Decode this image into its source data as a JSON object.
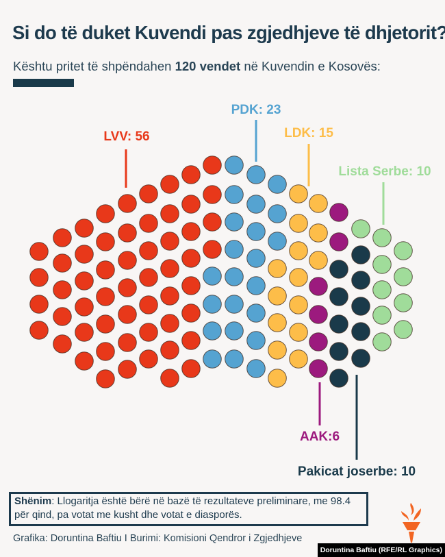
{
  "header": {
    "title": "Si do të duket Kuvendi pas zgjedhjeve të dhjetorit?",
    "subtitle_before": "Kështu pritet të shpëndahen ",
    "subtitle_bold": "120 vendet",
    "subtitle_after": " në Kuvendin e Kosovës:"
  },
  "chart_data": {
    "type": "parliament-dot",
    "title": "Si do të duket Kuvendi pas zgjedhjeve të dhjetorit?",
    "total_seats": 120,
    "series": [
      {
        "name": "LVV",
        "label": "LVV: 56",
        "seats": 56,
        "color": "#e8381a"
      },
      {
        "name": "PDK",
        "label": "PDK: 23",
        "seats": 23,
        "color": "#55a3d1"
      },
      {
        "name": "LDK",
        "label": "LDK: 15",
        "seats": 15,
        "color": "#fdbd49"
      },
      {
        "name": "AAK",
        "label": "AAK:6",
        "seats": 6,
        "color": "#9c1a7e"
      },
      {
        "name": "Pakicat joserbe",
        "label": "Pakicat joserbe: 10",
        "seats": 10,
        "color": "#1a3a4a"
      },
      {
        "name": "Lista Serbe",
        "label": "Lista Serbe: 10",
        "seats": 10,
        "color": "#a0dc9a"
      }
    ]
  },
  "footer": {
    "note_label": "Shënim",
    "note_text": ": Llogaritja është bërë në bazë të rezultateve preliminare, me 98.4 për qind, pa votat me kusht dhe votat e diasporës.",
    "credit": "Grafika: Doruntina Baftiu I Burimi: Komisioni Qendror i Zgjedhjeve",
    "photo_credit": "Doruntina Baftiu (RFE/RL Graphics)",
    "logo_icon": "torch-logo-icon",
    "logo_color": "#f26522"
  }
}
